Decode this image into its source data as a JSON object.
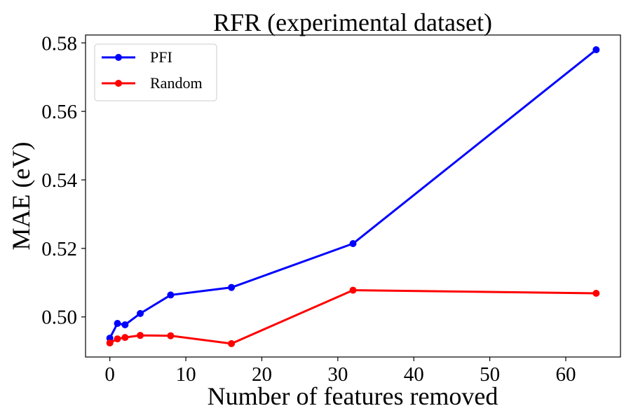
{
  "chart_data": {
    "type": "line",
    "title": "RFR (experimental dataset)",
    "xlabel": "Number of features removed",
    "ylabel": "MAE (eV)",
    "xlim": [
      -3.2,
      67.2
    ],
    "ylim": [
      0.4883,
      0.5823
    ],
    "xticks": [
      0,
      10,
      20,
      30,
      40,
      50,
      60
    ],
    "yticks": [
      0.5,
      0.52,
      0.54,
      0.56,
      0.58
    ],
    "ytick_format": "%.2f",
    "grid": false,
    "legend_position": "top-left",
    "x": [
      0,
      1,
      2,
      4,
      8,
      16,
      32,
      64
    ],
    "series": [
      {
        "name": "PFI",
        "color": "#0000ff",
        "values": [
          0.4938,
          0.4981,
          0.4977,
          0.501,
          0.5064,
          0.5086,
          0.5214,
          0.578
        ]
      },
      {
        "name": "Random",
        "color": "#ff0000",
        "values": [
          0.4924,
          0.4936,
          0.494,
          0.4946,
          0.4945,
          0.4922,
          0.5078,
          0.5069
        ]
      }
    ]
  }
}
